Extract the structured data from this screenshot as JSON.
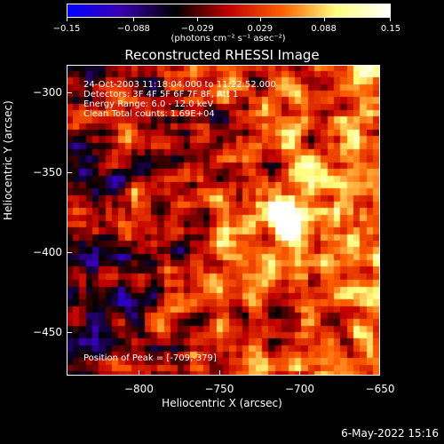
{
  "colorbar": {
    "ticks": [
      "−0.15",
      "−0.088",
      "−0.029",
      "0.029",
      "0.088",
      "0.15"
    ],
    "tick_values": [
      -0.15,
      -0.088,
      -0.029,
      0.029,
      0.088,
      0.15
    ],
    "unit_label": "(photons cm⁻² s⁻¹ asec⁻²)",
    "range": [
      -0.15,
      0.15
    ]
  },
  "annotations": {
    "time": "24-Oct-2003 11:18:04.000 to 11:22:52.000",
    "detectors": "Detectors: 3F 4F 5F 6F 7F 8F, Att 1",
    "energy": "Energy Range: 6.0 - 12.0 keV",
    "clean": "Clean     Total counts: 1.69E+04",
    "peak": "Position of Peak = [-709,-379]"
  },
  "footer": {
    "date": "6-May-2022 15:16"
  },
  "chart_data": {
    "type": "heatmap",
    "title": "Reconstructed RHESSI Image",
    "xlabel": "Heliocentric X (arcsec)",
    "ylabel": "Heliocentric Y (arcsec)",
    "xlim": [
      -845,
      -650
    ],
    "ylim": [
      -477,
      -283
    ],
    "xticks": [
      -800,
      -750,
      -700,
      -650
    ],
    "xtick_labels": [
      "−800",
      "−750",
      "−700",
      "−650"
    ],
    "yticks": [
      -300,
      -350,
      -400,
      -450
    ],
    "ytick_labels": [
      "−300",
      "−350",
      "−400",
      "−450"
    ],
    "peak_position": [
      -709,
      -379
    ],
    "peak_value": 0.15,
    "colormap": [
      "#0000ff",
      "#3a00b0",
      "#000000",
      "#c00000",
      "#ff6000",
      "#ffff80",
      "#ffffff"
    ],
    "background_color": "#000000"
  }
}
